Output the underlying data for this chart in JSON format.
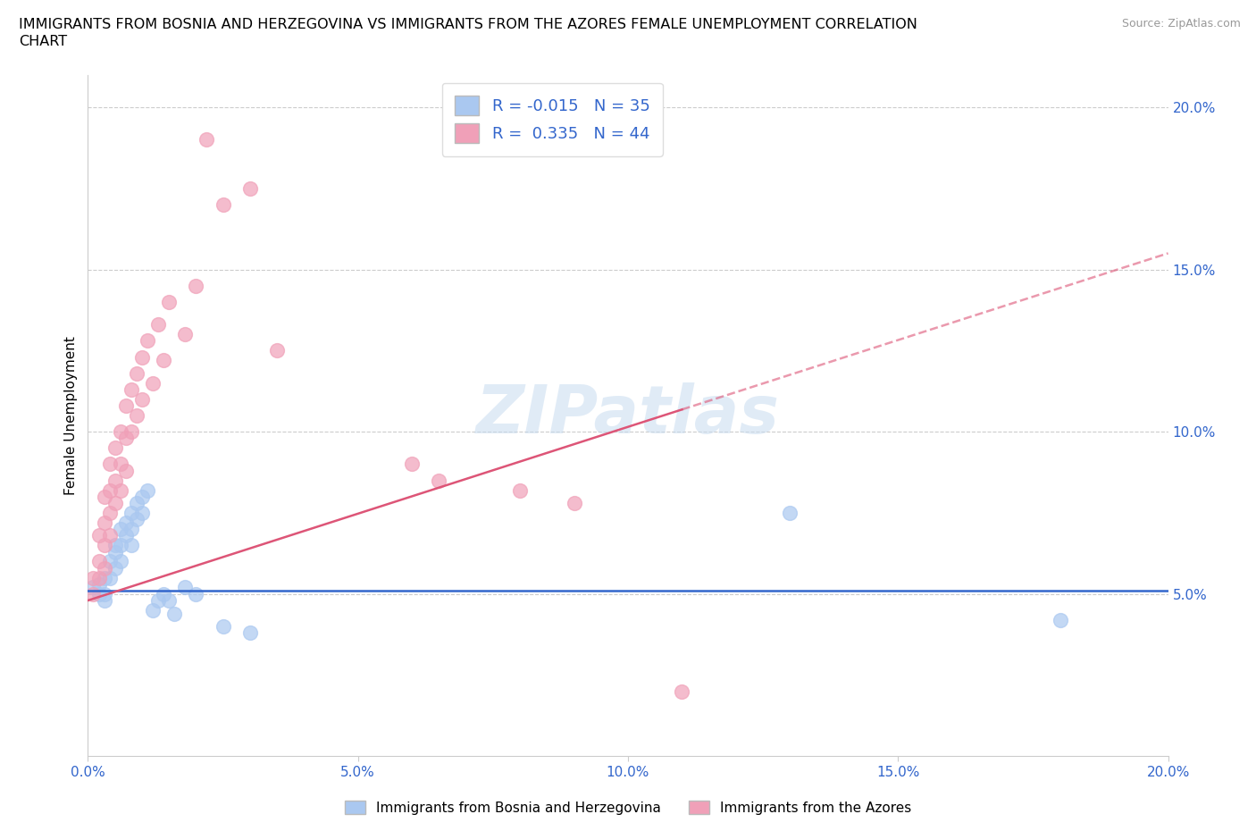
{
  "title_line1": "IMMIGRANTS FROM BOSNIA AND HERZEGOVINA VS IMMIGRANTS FROM THE AZORES FEMALE UNEMPLOYMENT CORRELATION",
  "title_line2": "CHART",
  "source": "Source: ZipAtlas.com",
  "ylabel": "Female Unemployment",
  "xlim": [
    0.0,
    0.2
  ],
  "ylim": [
    0.0,
    0.21
  ],
  "yticks": [
    0.05,
    0.1,
    0.15,
    0.2
  ],
  "ytick_labels": [
    "5.0%",
    "10.0%",
    "15.0%",
    "20.0%"
  ],
  "xticks": [
    0.0,
    0.05,
    0.1,
    0.15,
    0.2
  ],
  "xtick_labels": [
    "0.0%",
    "5.0%",
    "10.0%",
    "15.0%",
    "20.0%"
  ],
  "legend_R1": "R = -0.015",
  "legend_N1": "N = 35",
  "legend_R2": "R =  0.335",
  "legend_N2": "N = 44",
  "color_bosnia": "#aac8f0",
  "color_azores": "#f0a0b8",
  "color_line_bosnia": "#3366cc",
  "color_line_azores": "#dd5577",
  "bosnia_line_y": 0.051,
  "azores_line_start_y": 0.048,
  "azores_line_end_y": 0.155,
  "bosnia_x": [
    0.001,
    0.002,
    0.002,
    0.003,
    0.003,
    0.003,
    0.004,
    0.004,
    0.005,
    0.005,
    0.005,
    0.006,
    0.006,
    0.006,
    0.007,
    0.007,
    0.008,
    0.008,
    0.008,
    0.009,
    0.009,
    0.01,
    0.01,
    0.011,
    0.012,
    0.013,
    0.014,
    0.015,
    0.016,
    0.018,
    0.02,
    0.025,
    0.03,
    0.13,
    0.18
  ],
  "bosnia_y": [
    0.052,
    0.053,
    0.05,
    0.055,
    0.05,
    0.048,
    0.06,
    0.055,
    0.065,
    0.063,
    0.058,
    0.07,
    0.065,
    0.06,
    0.072,
    0.068,
    0.075,
    0.07,
    0.065,
    0.078,
    0.073,
    0.08,
    0.075,
    0.082,
    0.045,
    0.048,
    0.05,
    0.048,
    0.044,
    0.052,
    0.05,
    0.04,
    0.038,
    0.075,
    0.042
  ],
  "azores_x": [
    0.001,
    0.001,
    0.002,
    0.002,
    0.002,
    0.003,
    0.003,
    0.003,
    0.003,
    0.004,
    0.004,
    0.004,
    0.004,
    0.005,
    0.005,
    0.005,
    0.006,
    0.006,
    0.006,
    0.007,
    0.007,
    0.007,
    0.008,
    0.008,
    0.009,
    0.009,
    0.01,
    0.01,
    0.011,
    0.012,
    0.013,
    0.014,
    0.015,
    0.018,
    0.02,
    0.022,
    0.025,
    0.03,
    0.035,
    0.06,
    0.065,
    0.08,
    0.09,
    0.11
  ],
  "azores_y": [
    0.055,
    0.05,
    0.068,
    0.06,
    0.055,
    0.08,
    0.072,
    0.065,
    0.058,
    0.09,
    0.082,
    0.075,
    0.068,
    0.095,
    0.085,
    0.078,
    0.1,
    0.09,
    0.082,
    0.108,
    0.098,
    0.088,
    0.113,
    0.1,
    0.118,
    0.105,
    0.123,
    0.11,
    0.128,
    0.115,
    0.133,
    0.122,
    0.14,
    0.13,
    0.145,
    0.19,
    0.17,
    0.175,
    0.125,
    0.09,
    0.085,
    0.082,
    0.078,
    0.02
  ]
}
